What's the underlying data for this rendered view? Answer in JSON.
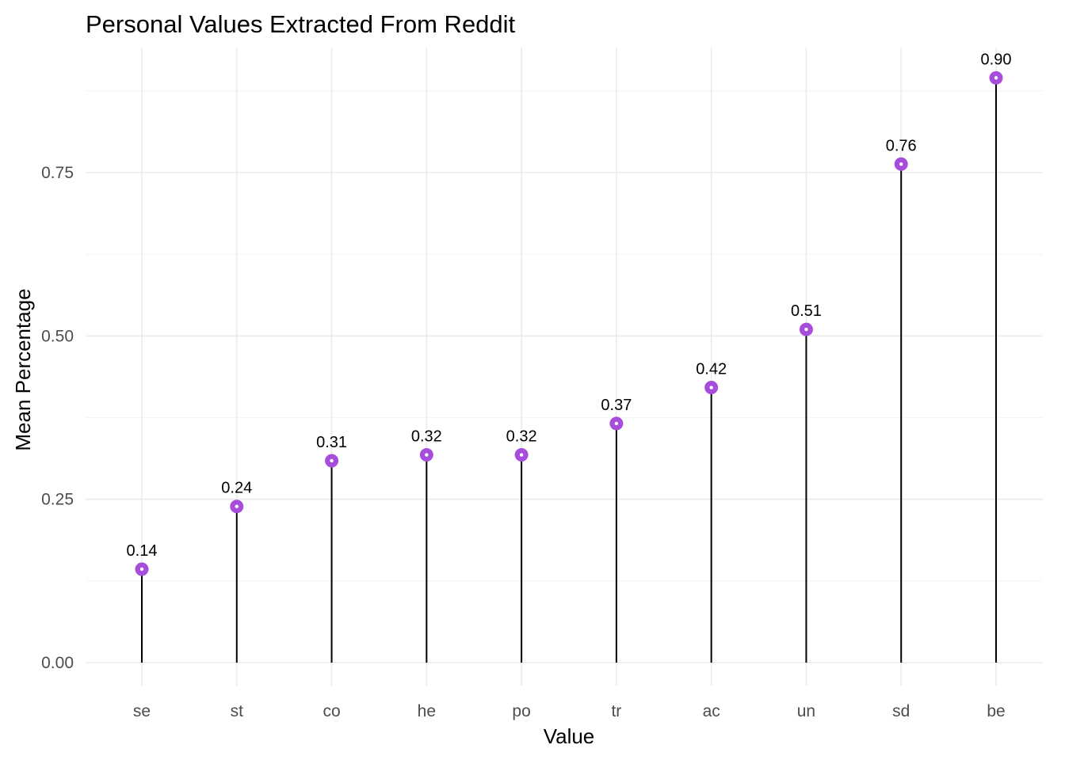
{
  "chart_data": {
    "type": "lollipop",
    "title": "Personal Values Extracted From Reddit",
    "xlabel": "Value",
    "ylabel": "Mean Percentage",
    "categories": [
      "se",
      "st",
      "co",
      "he",
      "po",
      "tr",
      "ac",
      "un",
      "sd",
      "be"
    ],
    "values": [
      0.143,
      0.239,
      0.309,
      0.318,
      0.318,
      0.366,
      0.421,
      0.51,
      0.763,
      0.895
    ],
    "data_labels": [
      "0.14",
      "0.24",
      "0.31",
      "0.32",
      "0.32",
      "0.37",
      "0.42",
      "0.51",
      "0.76",
      "0.90"
    ],
    "y_ticks": [
      0,
      0.25,
      0.5,
      0.75
    ],
    "y_tick_labels": [
      "0.00",
      "0.25",
      "0.50",
      "0.75"
    ],
    "ylim": [
      -0.035,
      0.935
    ],
    "grid": true,
    "legend": "none",
    "colors": {
      "point": "#a64ddb",
      "stem": "#000000",
      "grid": "#ebebeb"
    }
  }
}
